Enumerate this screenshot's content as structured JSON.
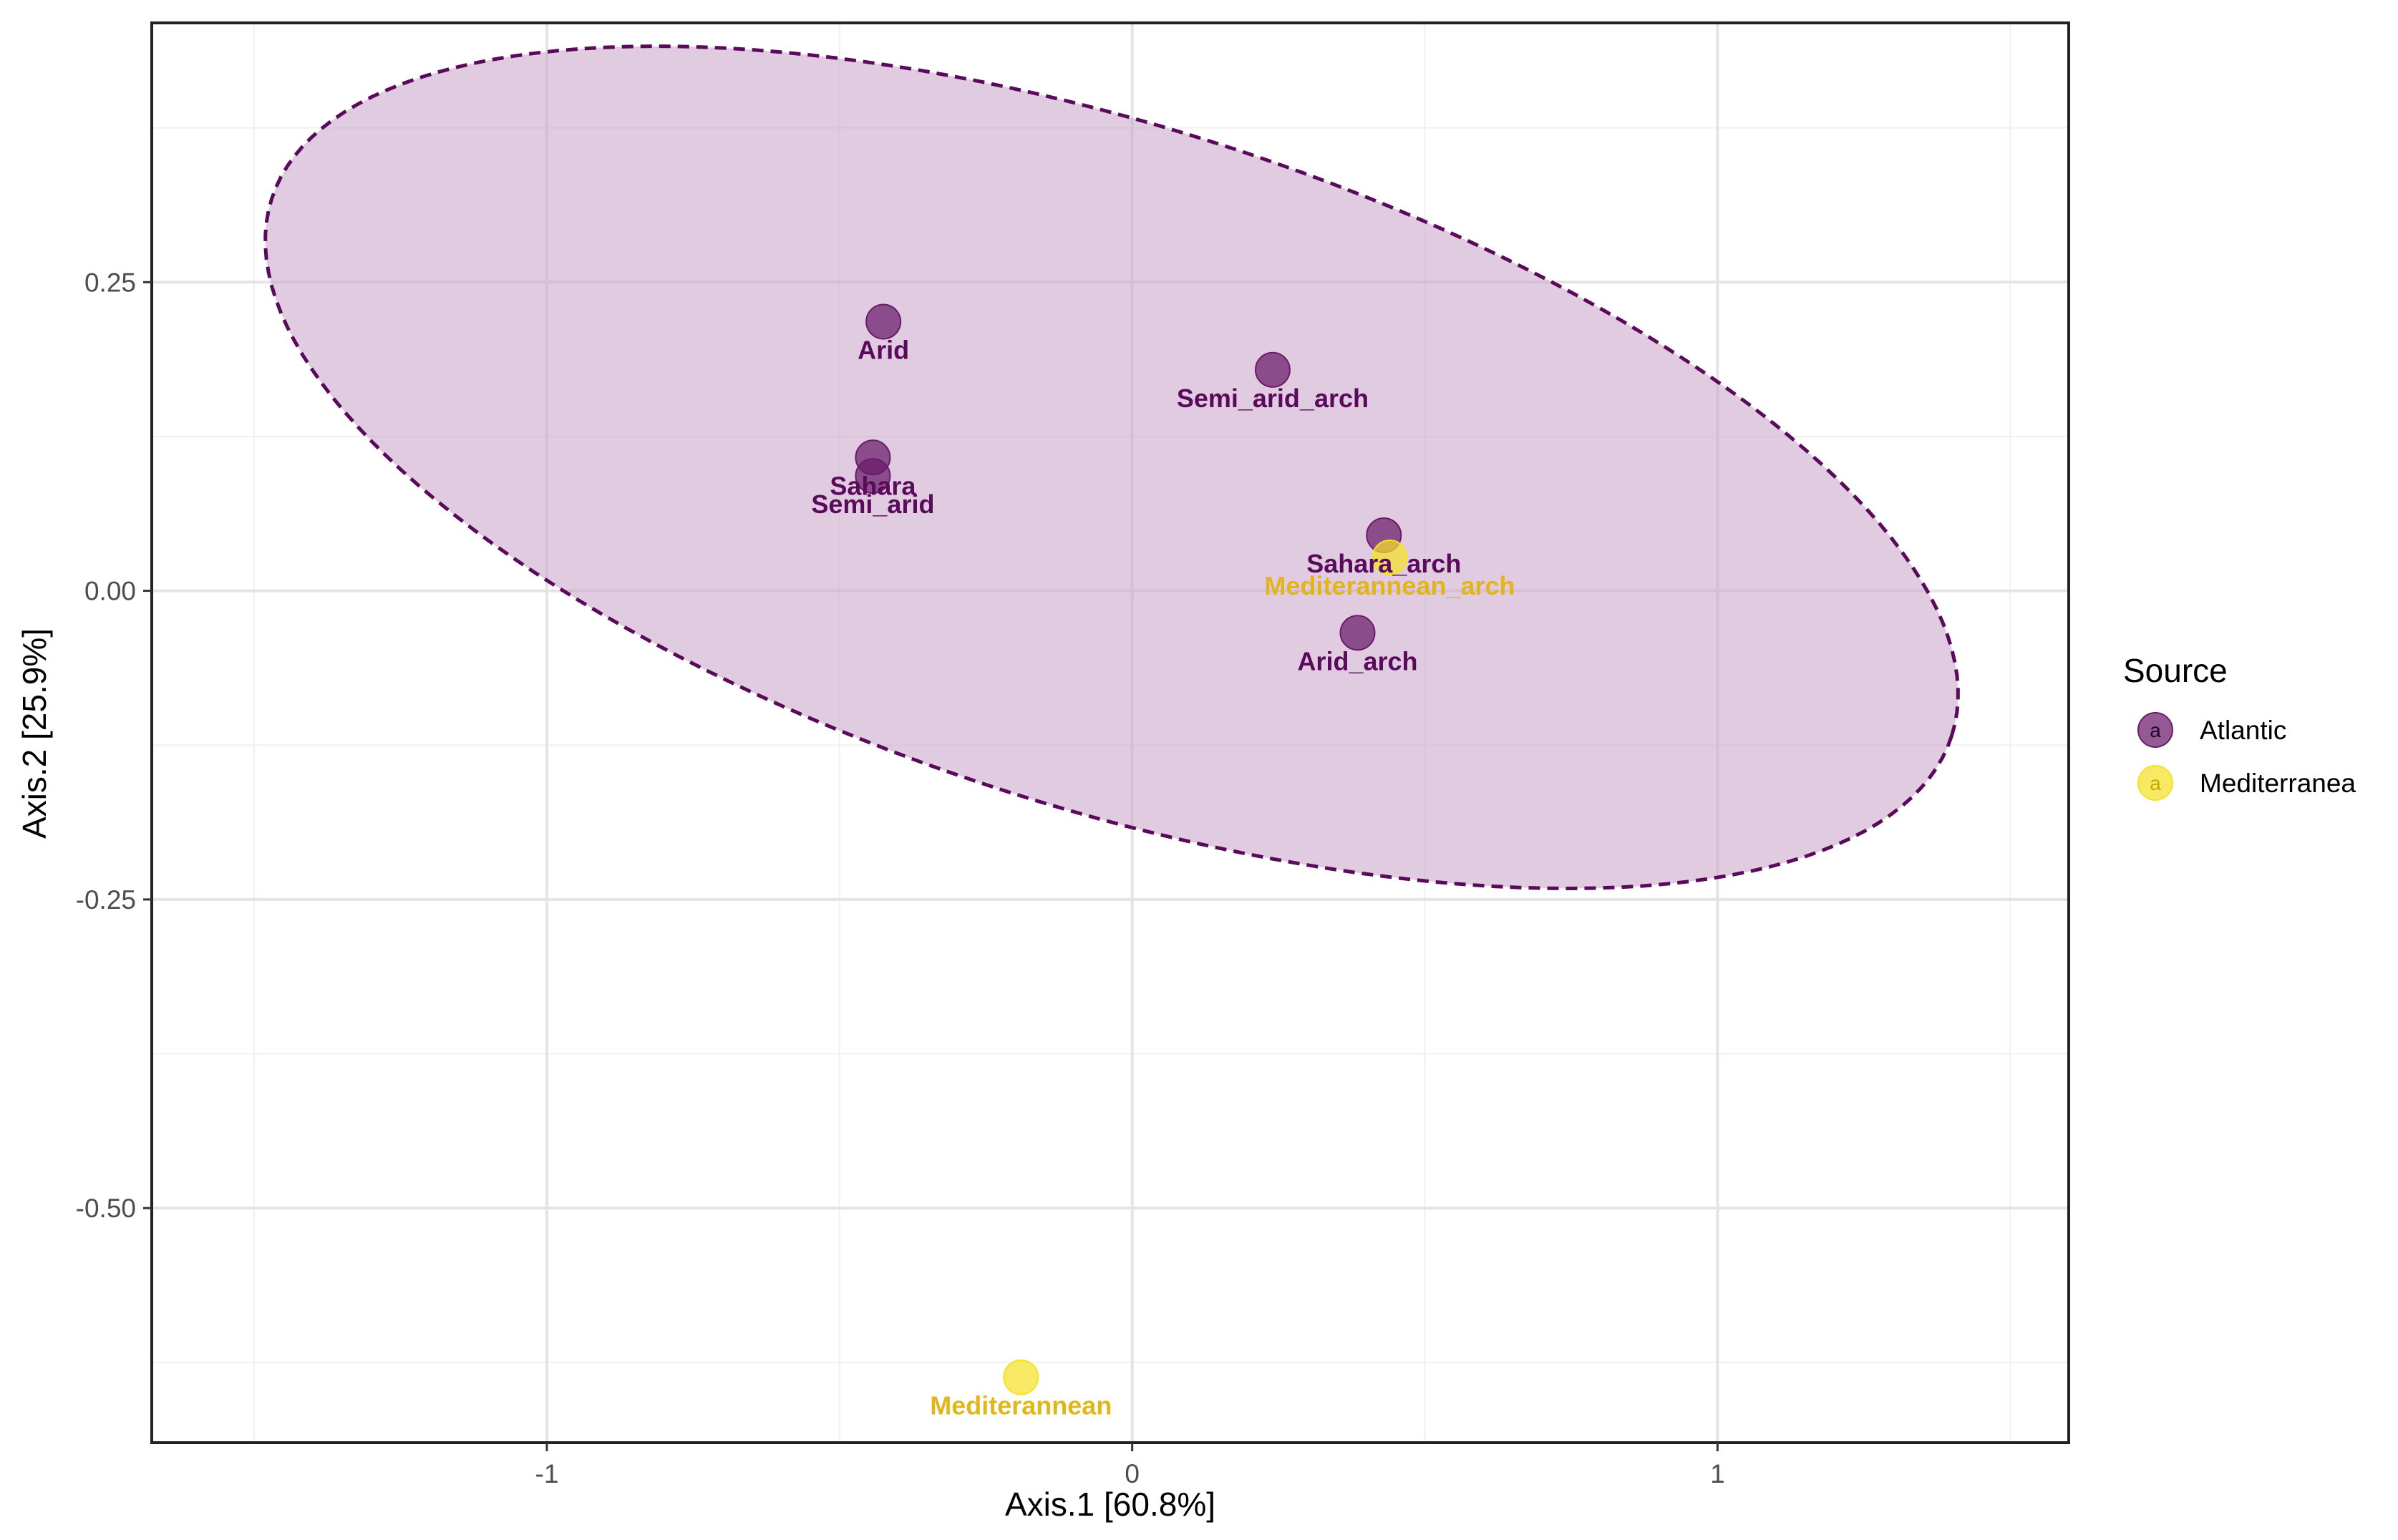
{
  "chart_data": {
    "type": "scatter",
    "title": "",
    "xlabel": "Axis.1   [60.8%]",
    "ylabel": "Axis.2   [25.9%]",
    "xlim": [
      -1.675,
      1.6
    ],
    "ylim": [
      -0.69,
      0.46
    ],
    "x_ticks": [
      {
        "value": -1,
        "label": "-1"
      },
      {
        "value": 0,
        "label": "0"
      },
      {
        "value": 1,
        "label": "1"
      }
    ],
    "y_ticks": [
      {
        "value": 0.25,
        "label": "0.25"
      },
      {
        "value": 0.0,
        "label": "0.00"
      },
      {
        "value": -0.25,
        "label": "-0.25"
      },
      {
        "value": -0.5,
        "label": "-0.50"
      }
    ],
    "x_minor_gridlines": [
      -1.5,
      -0.5,
      0.5,
      1.5
    ],
    "y_minor_gridlines": [
      0.375,
      0.125,
      -0.125,
      -0.375,
      -0.625
    ],
    "grid": true,
    "legend": {
      "title": "Source",
      "placement": "right",
      "key_letter": "a",
      "entries": [
        {
          "name": "Atlantic",
          "color": "#6a1b6a"
        },
        {
          "name": "Mediterranea",
          "color": "#f5e12a"
        }
      ]
    },
    "series": [
      {
        "name": "Atlantic",
        "color": "#6a1b6a",
        "label_color": "#5a0a5a",
        "points": [
          {
            "x": -0.425,
            "y": 0.218,
            "label": "Arid"
          },
          {
            "x": 0.24,
            "y": 0.179,
            "label": "Semi_arid_arch"
          },
          {
            "x": -0.443,
            "y": 0.108,
            "label": "Sahara"
          },
          {
            "x": -0.443,
            "y": 0.093,
            "label": "Semi_arid"
          },
          {
            "x": 0.43,
            "y": 0.045,
            "label": "Sahara_arch"
          },
          {
            "x": 0.385,
            "y": -0.034,
            "label": "Arid_arch"
          }
        ]
      },
      {
        "name": "Mediterranea",
        "color": "#f5e12a",
        "label_color": "#e2b51a",
        "points": [
          {
            "x": 0.44,
            "y": 0.027,
            "label": "Mediterannean_arch"
          },
          {
            "x": -0.19,
            "y": -0.637,
            "label": "Mediterannean"
          }
        ]
      }
    ],
    "ellipse": {
      "series": "Atlantic",
      "center_x": -0.035,
      "center_y": 0.1,
      "line_style": "dashed",
      "fill_color": "#c8a0c8",
      "stroke_color": "#5a0a5a"
    }
  }
}
